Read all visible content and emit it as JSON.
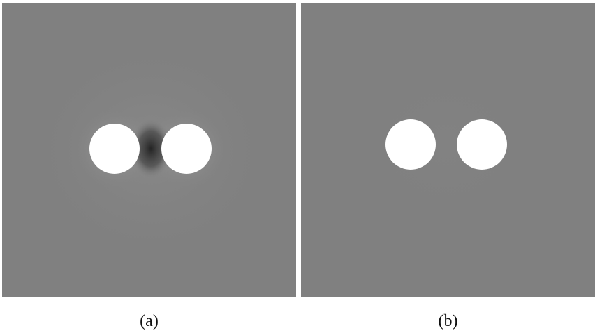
{
  "figure": {
    "panels": [
      {
        "caption": "(a)"
      },
      {
        "caption": "(b)"
      }
    ]
  },
  "colors": {
    "background_gray": "#808080",
    "disk_white": "#ffffff",
    "artifact_dark": "#2e2e2e",
    "artifact_light": "#a8a8a8",
    "page": "#ffffff"
  }
}
